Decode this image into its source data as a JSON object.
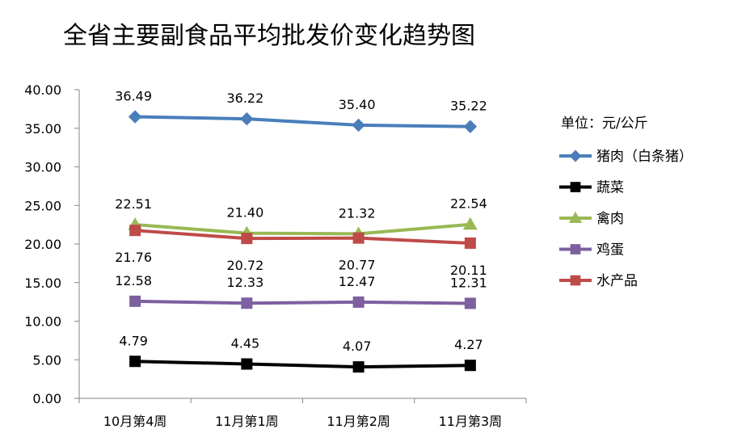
{
  "chart_data": {
    "type": "line",
    "title": "全省主要副食品平均批发价变化趋势图",
    "unit_label": "单位：元/公斤",
    "categories": [
      "10月第4周",
      "11月第1周",
      "11月第2周",
      "11月第3周"
    ],
    "ylim": [
      0,
      40
    ],
    "y_ticks": [
      "0.00",
      "5.00",
      "10.00",
      "15.00",
      "20.00",
      "25.00",
      "30.00",
      "35.00",
      "40.00"
    ],
    "grid": false,
    "legend_position": "right",
    "series": [
      {
        "name": "猪肉（白条猪）",
        "values": [
          36.49,
          36.22,
          35.4,
          35.22
        ],
        "labels": [
          "36.49",
          "36.22",
          "35.40",
          "35.22"
        ],
        "color": "#4a7ebb",
        "marker": "diamond",
        "label_pos": "above"
      },
      {
        "name": "蔬菜",
        "values": [
          4.79,
          4.45,
          4.07,
          4.27
        ],
        "labels": [
          "4.79",
          "4.45",
          "4.07",
          "4.27"
        ],
        "color": "#000000",
        "marker": "square",
        "label_pos": "above"
      },
      {
        "name": "禽肉",
        "values": [
          22.51,
          21.4,
          21.32,
          22.54
        ],
        "labels": [
          "22.51",
          "21.40",
          "21.32",
          "22.54"
        ],
        "color": "#98b954",
        "marker": "triangle",
        "label_pos": "above"
      },
      {
        "name": "鸡蛋",
        "values": [
          12.58,
          12.33,
          12.47,
          12.31
        ],
        "labels": [
          "12.58",
          "12.33",
          "12.47",
          "12.31"
        ],
        "color": "#7d60a0",
        "marker": "square",
        "label_pos": "above"
      },
      {
        "name": "水产品",
        "values": [
          21.76,
          20.72,
          20.77,
          20.11
        ],
        "labels": [
          "21.76",
          "20.72",
          "20.77",
          "20.11"
        ],
        "color": "#be4b48",
        "marker": "square",
        "label_pos": "below"
      }
    ]
  }
}
